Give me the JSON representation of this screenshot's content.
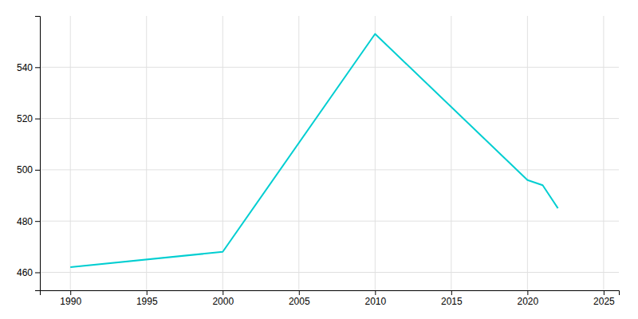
{
  "chart_data": {
    "type": "line",
    "x": [
      1990,
      2000,
      2010,
      2020,
      2021,
      2022
    ],
    "values": [
      462,
      468,
      553,
      496,
      494,
      485
    ],
    "color": "#00CED1",
    "xlim": [
      1988,
      2026
    ],
    "ylim": [
      453,
      560
    ],
    "xticks": [
      1990,
      1995,
      2000,
      2005,
      2010,
      2015,
      2020,
      2025
    ],
    "yticks": [
      460,
      480,
      500,
      520,
      540
    ],
    "grid": true
  }
}
